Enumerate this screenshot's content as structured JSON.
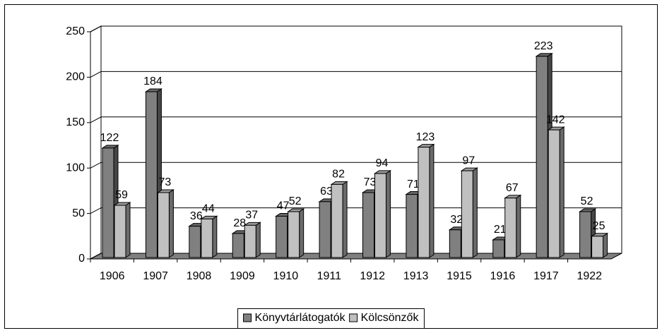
{
  "chart_data": {
    "type": "bar",
    "categories": [
      "1906",
      "1907",
      "1908",
      "1909",
      "1910",
      "1911",
      "1912",
      "1913",
      "1915",
      "1916",
      "1917",
      "1922"
    ],
    "series": [
      {
        "name": "Könyvtárlátogatók",
        "color": "#808080",
        "values": [
          122,
          184,
          36,
          28,
          47,
          63,
          73,
          71,
          32,
          21,
          223,
          52
        ]
      },
      {
        "name": "Kölcsönzők",
        "color": "#c0c0c0",
        "values": [
          59,
          73,
          44,
          37,
          52,
          82,
          94,
          123,
          97,
          67,
          142,
          25
        ]
      }
    ],
    "ylim": [
      0,
      250
    ],
    "yticks": [
      0,
      50,
      100,
      150,
      200,
      250
    ],
    "grid": true,
    "legend": "bottom"
  }
}
